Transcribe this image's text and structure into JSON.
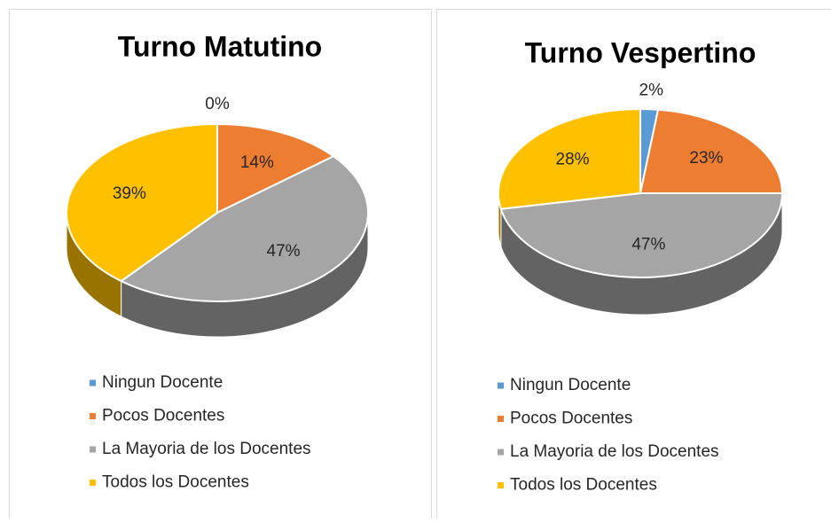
{
  "chart_data": [
    {
      "type": "pie",
      "title": "Turno Matutino",
      "categories": [
        "Ningun Docente",
        "Pocos Docentes",
        "La Mayoria de los Docentes",
        "Todos los Docentes"
      ],
      "values": [
        0,
        14,
        47,
        39
      ],
      "value_labels": [
        "0%",
        "14%",
        "47%",
        "39%"
      ],
      "colors": [
        "#5b9bd5",
        "#ed7d31",
        "#a5a5a5",
        "#ffc000"
      ]
    },
    {
      "type": "pie",
      "title": "Turno Vespertino",
      "categories": [
        "Ningun Docente",
        "Pocos Docentes",
        "La Mayoria de los Docentes",
        "Todos los Docentes"
      ],
      "values": [
        2,
        23,
        47,
        28
      ],
      "value_labels": [
        "2%",
        "23%",
        "47%",
        "28%"
      ],
      "colors": [
        "#5b9bd5",
        "#ed7d31",
        "#a5a5a5",
        "#ffc000"
      ]
    }
  ]
}
